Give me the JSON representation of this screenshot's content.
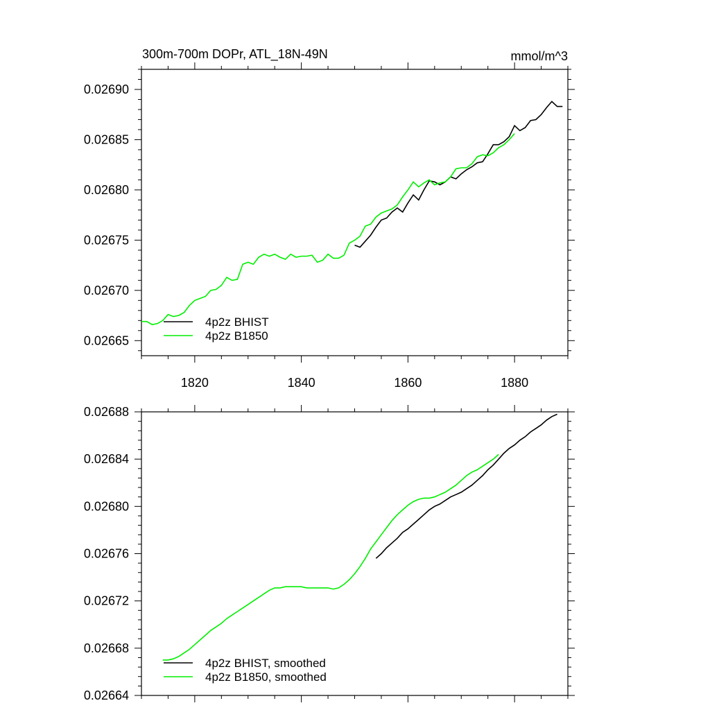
{
  "chart_data": [
    {
      "type": "line",
      "title": "300m-700m DOPr, ATL_18N-49N",
      "units": "mmol/m^3",
      "xlim": [
        1810,
        1890
      ],
      "ylim": [
        0.026635,
        0.02692
      ],
      "x_ticks": [
        1820,
        1840,
        1860,
        1880
      ],
      "y_ticks": [
        0.02665,
        0.0267,
        0.02675,
        0.0268,
        0.02685,
        0.0269
      ],
      "y_tick_labels": [
        "0.02665",
        "0.02670",
        "0.02675",
        "0.02680",
        "0.02685",
        "0.02690"
      ],
      "x_tick_labels": [
        "1820",
        "1840",
        "1860",
        "1880"
      ],
      "legend_position": "bottom-left",
      "series": [
        {
          "name": "4p2z BHIST",
          "color": "#000000",
          "x": [
            1850,
            1851,
            1852,
            1853,
            1854,
            1855,
            1856,
            1857,
            1858,
            1859,
            1860,
            1861,
            1862,
            1863,
            1864,
            1865,
            1866,
            1867,
            1868,
            1869,
            1870,
            1871,
            1872,
            1873,
            1874,
            1875,
            1876,
            1877,
            1878,
            1879,
            1880,
            1881,
            1882,
            1883,
            1884,
            1885,
            1886,
            1887,
            1888,
            1889
          ],
          "y": [
            0.026745,
            0.026743,
            0.026749,
            0.026755,
            0.026763,
            0.02677,
            0.026772,
            0.026778,
            0.026782,
            0.026778,
            0.026787,
            0.026795,
            0.02679,
            0.0268,
            0.026809,
            0.026808,
            0.026805,
            0.026808,
            0.026813,
            0.026811,
            0.026816,
            0.02682,
            0.026823,
            0.026827,
            0.026828,
            0.026836,
            0.026845,
            0.026845,
            0.026848,
            0.026853,
            0.026864,
            0.026859,
            0.026862,
            0.026869,
            0.02687,
            0.026875,
            0.026882,
            0.026888,
            0.026883,
            0.026883
          ]
        },
        {
          "name": "4p2z B1850",
          "color": "#00ee00",
          "x": [
            1810,
            1811,
            1812,
            1813,
            1814,
            1815,
            1816,
            1817,
            1818,
            1819,
            1820,
            1821,
            1822,
            1823,
            1824,
            1825,
            1826,
            1827,
            1828,
            1829,
            1830,
            1831,
            1832,
            1833,
            1834,
            1835,
            1836,
            1837,
            1838,
            1839,
            1840,
            1841,
            1842,
            1843,
            1844,
            1845,
            1846,
            1847,
            1848,
            1849,
            1850,
            1851,
            1852,
            1853,
            1854,
            1855,
            1856,
            1857,
            1858,
            1859,
            1860,
            1861,
            1862,
            1863,
            1864,
            1865,
            1866,
            1867,
            1868,
            1869,
            1870,
            1871,
            1872,
            1873,
            1874,
            1875,
            1876,
            1877,
            1878,
            1879,
            1880
          ],
          "y": [
            0.026669,
            0.026669,
            0.026666,
            0.026667,
            0.02667,
            0.026676,
            0.026674,
            0.026675,
            0.026678,
            0.026685,
            0.02669,
            0.026692,
            0.026694,
            0.0267,
            0.026701,
            0.026705,
            0.026713,
            0.02671,
            0.026711,
            0.026726,
            0.026728,
            0.026726,
            0.026733,
            0.026736,
            0.026734,
            0.026736,
            0.026733,
            0.026731,
            0.026736,
            0.026733,
            0.026734,
            0.026734,
            0.026735,
            0.026728,
            0.02673,
            0.026736,
            0.026732,
            0.026732,
            0.026735,
            0.026747,
            0.02675,
            0.026754,
            0.026764,
            0.026766,
            0.026773,
            0.026777,
            0.026779,
            0.026781,
            0.026785,
            0.026793,
            0.0268,
            0.026808,
            0.026803,
            0.026807,
            0.02681,
            0.026805,
            0.026807,
            0.026808,
            0.026813,
            0.026821,
            0.026822,
            0.026822,
            0.026826,
            0.026833,
            0.026835,
            0.026834,
            0.026837,
            0.026842,
            0.026845,
            0.02685,
            0.026856
          ]
        }
      ]
    },
    {
      "type": "line",
      "xlim": [
        1810,
        1890
      ],
      "ylim": [
        0.02664,
        0.02688
      ],
      "x_ticks": [
        1820,
        1840,
        1860,
        1880
      ],
      "y_ticks": [
        0.02664,
        0.02668,
        0.02672,
        0.02676,
        0.0268,
        0.02684,
        0.02688
      ],
      "y_tick_labels": [
        "0.02664",
        "0.02668",
        "0.02672",
        "0.02676",
        "0.02680",
        "0.02684",
        "0.02688"
      ],
      "legend_position": "bottom-left",
      "series": [
        {
          "name": "4p2z BHIST, smoothed",
          "color": "#000000",
          "x": [
            1854,
            1855,
            1856,
            1857,
            1858,
            1859,
            1860,
            1861,
            1862,
            1863,
            1864,
            1865,
            1866,
            1867,
            1868,
            1869,
            1870,
            1871,
            1872,
            1873,
            1874,
            1875,
            1876,
            1877,
            1878,
            1879,
            1880,
            1881,
            1882,
            1883,
            1884,
            1885,
            1886,
            1887,
            1888
          ],
          "y": [
            0.026756,
            0.02676,
            0.026765,
            0.026769,
            0.026773,
            0.026778,
            0.026781,
            0.026785,
            0.026789,
            0.026793,
            0.026797,
            0.0268,
            0.026802,
            0.026805,
            0.026808,
            0.02681,
            0.026812,
            0.026815,
            0.026818,
            0.026822,
            0.026826,
            0.026831,
            0.026835,
            0.02684,
            0.026845,
            0.026849,
            0.026852,
            0.026856,
            0.026859,
            0.026863,
            0.026866,
            0.026869,
            0.026873,
            0.026876,
            0.026878
          ]
        },
        {
          "name": "4p2z B1850, smoothed",
          "color": "#00ee00",
          "x": [
            1814,
            1815,
            1816,
            1817,
            1818,
            1819,
            1820,
            1821,
            1822,
            1823,
            1824,
            1825,
            1826,
            1827,
            1828,
            1829,
            1830,
            1831,
            1832,
            1833,
            1834,
            1835,
            1836,
            1837,
            1838,
            1839,
            1840,
            1841,
            1842,
            1843,
            1844,
            1845,
            1846,
            1847,
            1848,
            1849,
            1850,
            1851,
            1852,
            1853,
            1854,
            1855,
            1856,
            1857,
            1858,
            1859,
            1860,
            1861,
            1862,
            1863,
            1864,
            1865,
            1866,
            1867,
            1868,
            1869,
            1870,
            1871,
            1872,
            1873,
            1874,
            1875,
            1876,
            1877
          ],
          "y": [
            0.02667,
            0.02667,
            0.026671,
            0.026673,
            0.026676,
            0.026679,
            0.026683,
            0.026687,
            0.026691,
            0.026695,
            0.026698,
            0.026701,
            0.026705,
            0.026708,
            0.026711,
            0.026714,
            0.026717,
            0.02672,
            0.026723,
            0.026726,
            0.026729,
            0.026731,
            0.026731,
            0.026732,
            0.026732,
            0.026732,
            0.026732,
            0.026731,
            0.026731,
            0.026731,
            0.026731,
            0.026731,
            0.02673,
            0.026731,
            0.026734,
            0.026738,
            0.026743,
            0.026749,
            0.026756,
            0.026764,
            0.02677,
            0.026776,
            0.026782,
            0.026788,
            0.026793,
            0.026797,
            0.026801,
            0.026804,
            0.026806,
            0.026807,
            0.026807,
            0.026808,
            0.02681,
            0.026812,
            0.026815,
            0.026818,
            0.026822,
            0.026826,
            0.026829,
            0.026831,
            0.026834,
            0.026837,
            0.02684,
            0.026844
          ]
        }
      ]
    }
  ]
}
